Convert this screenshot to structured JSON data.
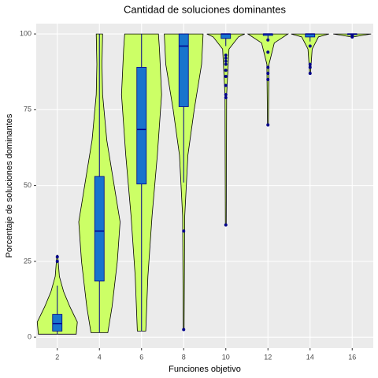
{
  "chart_data": {
    "type": "violin",
    "title": "Cantidad de soluciones dominantes",
    "x_label": "Funciones objetivo",
    "y_label": "Porcentaje de soluciones dominantes",
    "categories": [
      "2",
      "4",
      "6",
      "8",
      "10",
      "12",
      "14",
      "16"
    ],
    "ylim": [
      -3.6,
      103.4
    ],
    "yticks": [
      0,
      25,
      50,
      75,
      100
    ],
    "grid": true,
    "violin_color": "#ccff66",
    "box_color": "#1874cd",
    "outlier_color": "#00008b",
    "groups": [
      {
        "box": {
          "lower": 1,
          "q1": 2,
          "median": 4.5,
          "q3": 7.5,
          "upper": 17
        },
        "outliers": [
          25,
          26.5
        ],
        "violin": {
          "y": [
            1,
            5,
            10,
            15,
            20,
            27
          ],
          "width": [
            0.9,
            0.95,
            0.6,
            0.3,
            0.1,
            0.02
          ]
        }
      },
      {
        "box": {
          "lower": 1.5,
          "q1": 18.5,
          "median": 35,
          "q3": 53,
          "upper": 100
        },
        "outliers": [],
        "violin": {
          "y": [
            1.5,
            10,
            25,
            38,
            50,
            65,
            80,
            90,
            100
          ],
          "width": [
            0.4,
            0.6,
            0.85,
            0.98,
            0.7,
            0.35,
            0.15,
            0.12,
            0.15
          ]
        }
      },
      {
        "box": {
          "lower": 2,
          "q1": 50.5,
          "median": 68.5,
          "q3": 89,
          "upper": 100
        },
        "outliers": [],
        "violin": {
          "y": [
            2,
            20,
            40,
            60,
            80,
            95,
            100
          ],
          "width": [
            0.2,
            0.3,
            0.5,
            0.75,
            0.95,
            0.85,
            0.8
          ]
        }
      },
      {
        "box": {
          "lower": 51,
          "q1": 76,
          "median": 96,
          "q3": 100,
          "upper": 100
        },
        "outliers": [
          35,
          2.5
        ],
        "violin": {
          "y": [
            2.5,
            40,
            60,
            75,
            90,
            100
          ],
          "width": [
            0.02,
            0.05,
            0.2,
            0.5,
            0.85,
            0.92
          ]
        }
      },
      {
        "box": {
          "lower": 96,
          "q1": 98.5,
          "median": 100,
          "q3": 100,
          "upper": 100
        },
        "outliers": [
          93,
          92,
          91,
          90,
          88,
          86,
          83,
          80,
          79,
          37
        ],
        "violin": {
          "y": [
            37,
            80,
            95,
            99,
            100
          ],
          "width": [
            0.02,
            0.04,
            0.15,
            0.6,
            0.9
          ]
        }
      },
      {
        "box": {
          "lower": 98.5,
          "q1": 99.5,
          "median": 100,
          "q3": 100,
          "upper": 100
        },
        "outliers": [
          98,
          94,
          89,
          87,
          85,
          70
        ],
        "violin": {
          "y": [
            70,
            90,
            97,
            100
          ],
          "width": [
            0.02,
            0.05,
            0.3,
            0.95
          ]
        }
      },
      {
        "box": {
          "lower": 97.5,
          "q1": 99,
          "median": 100,
          "q3": 100,
          "upper": 100
        },
        "outliers": [
          96,
          90,
          89,
          87
        ],
        "violin": {
          "y": [
            87,
            95,
            99,
            100
          ],
          "width": [
            0.02,
            0.1,
            0.4,
            0.9
          ]
        }
      },
      {
        "box": {
          "lower": 100,
          "q1": 100,
          "median": 100,
          "q3": 100,
          "upper": 100
        },
        "outliers": [
          99.5,
          99
        ],
        "violin": {
          "y": [
            99,
            100
          ],
          "width": [
            0.05,
            0.9
          ]
        }
      }
    ]
  }
}
